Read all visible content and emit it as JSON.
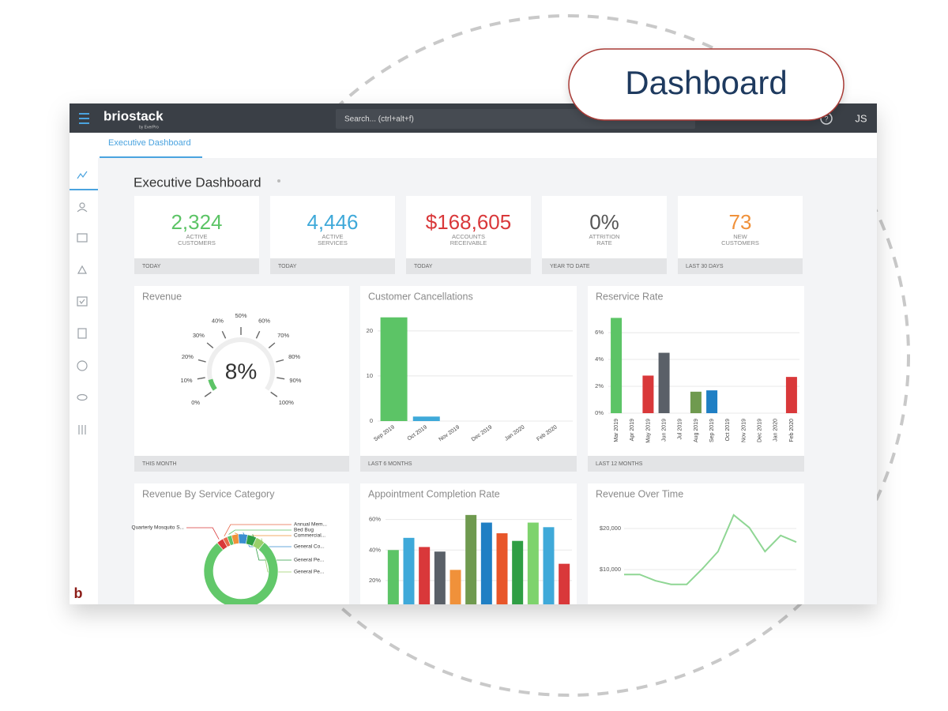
{
  "badge": "Dashboard",
  "app": {
    "brand": "briostack",
    "brand_sub": "by EverPro",
    "search": "Search... (ctrl+alt+f)",
    "user": "JS",
    "tab": "Executive Dashboard",
    "logo": "b",
    "page_title": "Executive Dashboard"
  },
  "kpis": [
    {
      "value": "2,324",
      "label": [
        "ACTIVE",
        "CUSTOMERS"
      ],
      "period": "TODAY",
      "color": "#5cc466"
    },
    {
      "value": "4,446",
      "label": [
        "ACTIVE",
        "SERVICES"
      ],
      "period": "TODAY",
      "color": "#3fa9d9"
    },
    {
      "value": "$168,605",
      "label": [
        "ACCOUNTS",
        "RECEIVABLE"
      ],
      "period": "TODAY",
      "color": "#d9383a"
    },
    {
      "value": "0%",
      "label": [
        "ATTRITION",
        "RATE"
      ],
      "period": "YEAR TO DATE",
      "color": "#555555"
    },
    {
      "value": "73",
      "label": [
        "NEW",
        "CUSTOMERS"
      ],
      "period": "LAST 30 DAYS",
      "color": "#f0913a"
    }
  ],
  "chart_data": [
    {
      "type": "gauge",
      "title": "Revenue",
      "value": 8,
      "value_label": "8%",
      "color": "#5cc466",
      "xlim": [
        0,
        100
      ],
      "xticks": [
        {
          "value": 0,
          "label": "0%"
        },
        {
          "value": 10,
          "label": "10%"
        },
        {
          "value": 20,
          "label": "20%"
        },
        {
          "value": 30,
          "label": "30%"
        },
        {
          "value": 40,
          "label": "40%"
        },
        {
          "value": 50,
          "label": "50%"
        },
        {
          "value": 60,
          "label": "60%"
        },
        {
          "value": 70,
          "label": "70%"
        },
        {
          "value": 80,
          "label": "80%"
        },
        {
          "value": 90,
          "label": "90%"
        },
        {
          "value": 100,
          "label": "100%"
        }
      ],
      "footer": "THIS MONTH"
    },
    {
      "type": "bar",
      "title": "Customer Cancellations",
      "categories": [
        "Sep 2019",
        "Oct 2019",
        "Nov 2019",
        "Dec 2019",
        "Jan 2020",
        "Feb 2020"
      ],
      "values": [
        23,
        1,
        0,
        0,
        0,
        0
      ],
      "colors": [
        "#5cc466",
        "#3fa9d9",
        "#5cc466",
        "#5cc466",
        "#5cc466",
        "#5cc466"
      ],
      "ylim": [
        0,
        24
      ],
      "yticks": [
        0,
        10,
        20
      ],
      "grid": true,
      "footer": "LAST 6 MONTHS"
    },
    {
      "type": "bar",
      "title": "Reservice Rate",
      "categories": [
        "Mar 2019",
        "Apr 2019",
        "May 2019",
        "Jun 2019",
        "Jul 2019",
        "Aug 2019",
        "Sep 2019",
        "Oct 2019",
        "Nov 2019",
        "Dec 2019",
        "Jan 2020",
        "Feb 2020"
      ],
      "values": [
        7.1,
        0,
        2.8,
        4.5,
        0,
        1.6,
        1.7,
        0,
        0,
        0,
        0,
        2.7
      ],
      "colors": [
        "#5cc466",
        "#5cc466",
        "#d9383a",
        "#5a6068",
        "#5cc466",
        "#6f9a4f",
        "#1f7fc4",
        "#5cc466",
        "#5cc466",
        "#5cc466",
        "#5cc466",
        "#d9383a"
      ],
      "ylim": [
        0,
        7.3
      ],
      "yticks": [
        {
          "value": 0,
          "label": "0%"
        },
        {
          "value": 2,
          "label": "2%"
        },
        {
          "value": 4,
          "label": "4%"
        },
        {
          "value": 6,
          "label": "6%"
        }
      ],
      "grid": true,
      "footer": "LAST 12 MONTHS"
    },
    {
      "type": "pie",
      "title": "Revenue By Service Category",
      "categories": [
        "Quarterly Mosquito S...",
        "Annual Mem...",
        "Bed Bug",
        "Commercial...",
        "General Co...",
        "General Pe...",
        "General Pe...",
        null
      ],
      "values": [
        3,
        2,
        2,
        3,
        4,
        4,
        4,
        78
      ],
      "colors": [
        "#d9383a",
        "#e8694a",
        "#5cc466",
        "#f0913a",
        "#3a8fd0",
        "#2f9e44",
        "#9ad06a",
        "#62c86a"
      ]
    },
    {
      "type": "bar",
      "title": "Appointment Completion Rate",
      "values": [
        40,
        48,
        42,
        39,
        27,
        63,
        58,
        51,
        46,
        58,
        55,
        31
      ],
      "colors": [
        "#5cc466",
        "#3fa9d9",
        "#d9383a",
        "#5a6068",
        "#f0913a",
        "#6f9a4f",
        "#1f7fc4",
        "#e8562a",
        "#2f9e44",
        "#7ed36d",
        "#3fa9d9",
        "#d9383a"
      ],
      "ylim": [
        0,
        65
      ],
      "yticks": [
        {
          "value": 20,
          "label": "20%"
        },
        {
          "value": 40,
          "label": "40%"
        },
        {
          "value": 60,
          "label": "60%"
        }
      ],
      "grid": true
    },
    {
      "type": "line",
      "title": "Revenue Over Time",
      "values": [
        8800,
        8800,
        7300,
        6400,
        6400,
        10200,
        14400,
        23300,
        20200,
        14400,
        18300,
        16700
      ],
      "color": "#8fd694",
      "ylim": [
        0,
        25000
      ],
      "yticks": [
        {
          "value": 10000,
          "label": "$10,000"
        },
        {
          "value": 20000,
          "label": "$20,000"
        }
      ],
      "grid": true
    }
  ]
}
